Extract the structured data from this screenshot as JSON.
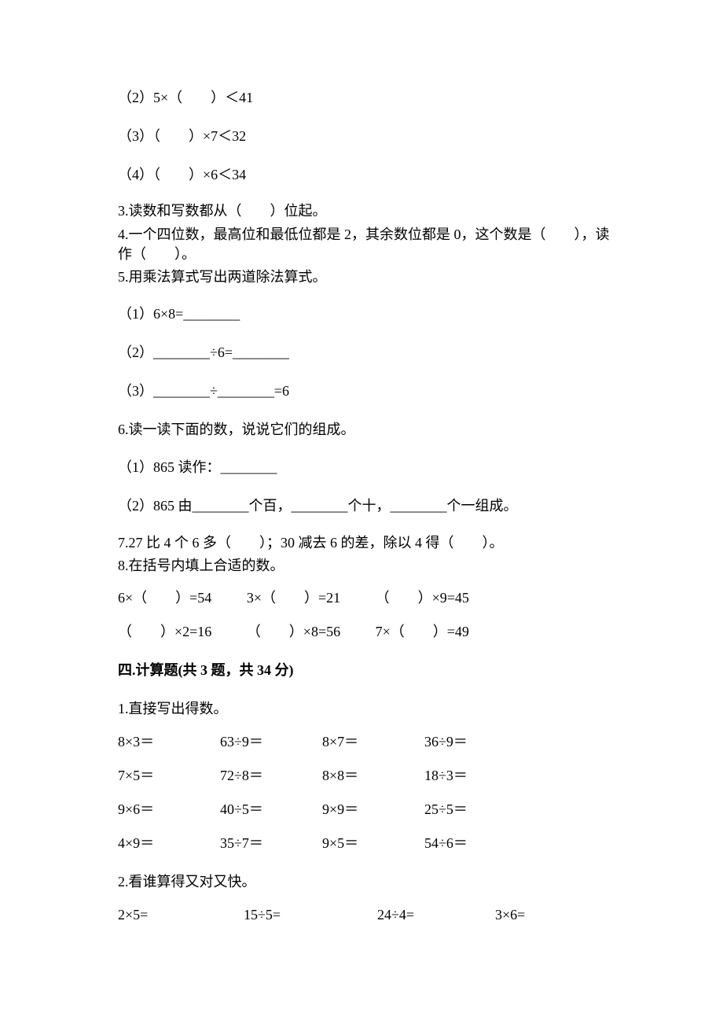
{
  "colors": {
    "text": "#000000",
    "background": "#ffffff"
  },
  "typography": {
    "font_family": "SimSun",
    "base_fontsize": 18,
    "line_height": 1.6
  },
  "q2_items": {
    "item2": "（2）5×（　　）＜41",
    "item3": "（3）（　　）×7＜32",
    "item4": "（4）（　　）×6＜34"
  },
  "q3": "3.读数和写数都从（　　）位起。",
  "q4": "4.一个四位数，最高位和最低位都是 2，其余数位都是 0，这个数是（　　），读作（　　）。",
  "q5": {
    "stem": "5.用乘法算式写出两道除法算式。",
    "item1": "（1）6×8=________",
    "item2": "（2）________÷6=________",
    "item3": "（3）________÷________=6"
  },
  "q6": {
    "stem": "6.读一读下面的数，说说它们的组成。",
    "item1": "（1）865 读作：________",
    "item2": "（2）865 由________个百，________个十，________个一组成。"
  },
  "q7": "7.27 比 4 个 6 多（　　）；30 减去 6 的差，除以 4 得（　　）。",
  "q8": {
    "stem": "8.在括号内填上合适的数。",
    "row1": {
      "c1": "6×（　　）=54",
      "c2": "3×（　　）=21",
      "c3": "（　　）×9=45"
    },
    "row2": {
      "c1": "（　　）×2=16",
      "c2": "（　　）×8=56",
      "c3": "7×（　　）=49"
    }
  },
  "section4": {
    "title": "四.计算题(共 3 题，共 34 分)",
    "q1": {
      "stem": "1.直接写出得数。",
      "rows": [
        {
          "c1": "8×3＝",
          "c2": "63÷9＝",
          "c3": "8×7＝",
          "c4": "36÷9＝"
        },
        {
          "c1": "7×5＝",
          "c2": "72÷8＝",
          "c3": "8×8＝",
          "c4": "18÷3＝"
        },
        {
          "c1": "9×6＝",
          "c2": "40÷5＝",
          "c3": "9×9＝",
          "c4": "25÷5＝"
        },
        {
          "c1": "4×9＝",
          "c2": "35÷7＝",
          "c3": "9×5＝",
          "c4": "54÷6＝"
        }
      ]
    },
    "q2": {
      "stem": "2.看谁算得又对又快。",
      "row1": {
        "c1": "2×5=",
        "c2": "15÷5=",
        "c3": "24÷4=",
        "c4": "3×6="
      }
    }
  }
}
